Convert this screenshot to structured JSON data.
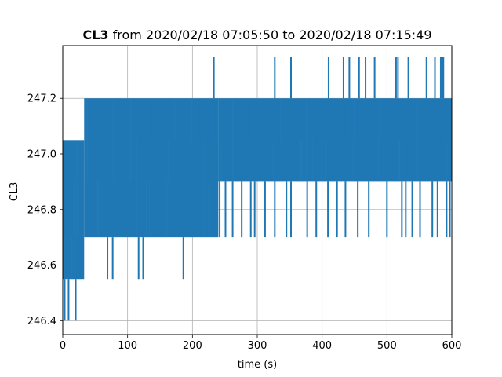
{
  "chart_data": {
    "type": "line",
    "title_bold": "CL3",
    "title_rest": " from 2020/02/18 07:05:50 to 2020/02/18 07:15:49",
    "xlabel": "time (s)",
    "ylabel": "CL3",
    "xlim": [
      0,
      600
    ],
    "ylim": [
      246.35,
      247.39
    ],
    "xticks": [
      0,
      100,
      200,
      300,
      400,
      500,
      600
    ],
    "yticks": [
      246.4,
      246.6,
      246.8,
      247.0,
      247.2
    ],
    "ytick_labels": [
      "246.4",
      "246.6",
      "246.8",
      "247.0",
      "247.2"
    ],
    "grid": true,
    "series": [
      {
        "color": "#1f77b4",
        "value_levels": [
          246.4,
          246.55,
          246.7,
          246.9,
          247.05,
          247.2,
          247.35
        ],
        "segments": [
          {
            "x_start": 0,
            "x_end": 33,
            "low": 246.55,
            "high": 247.05
          },
          {
            "x_start": 33,
            "x_end": 240,
            "low": 246.7,
            "high": 247.2
          },
          {
            "x_start": 240,
            "x_end": 600,
            "low": 246.9,
            "high": 247.2
          }
        ],
        "min_spikes_x": [
          3,
          9,
          20
        ],
        "min_spikes_value": 246.4,
        "low_spikes_x": [
          69,
          77,
          117,
          124,
          186
        ],
        "low_spikes_value": 246.55,
        "low_spikes_late_x": [
          242,
          251,
          262,
          276,
          290,
          296,
          312,
          327,
          345,
          352,
          377,
          391,
          409,
          423,
          436,
          455,
          472,
          500,
          523,
          529,
          539,
          551,
          570,
          578,
          592,
          597
        ],
        "low_spikes_late_value": 246.7,
        "high_spikes_x": [
          233,
          327,
          352,
          410,
          433,
          442,
          457,
          467,
          481,
          514,
          517,
          533,
          561,
          574,
          583,
          585,
          587
        ],
        "high_spikes_value": 247.35
      }
    ]
  }
}
